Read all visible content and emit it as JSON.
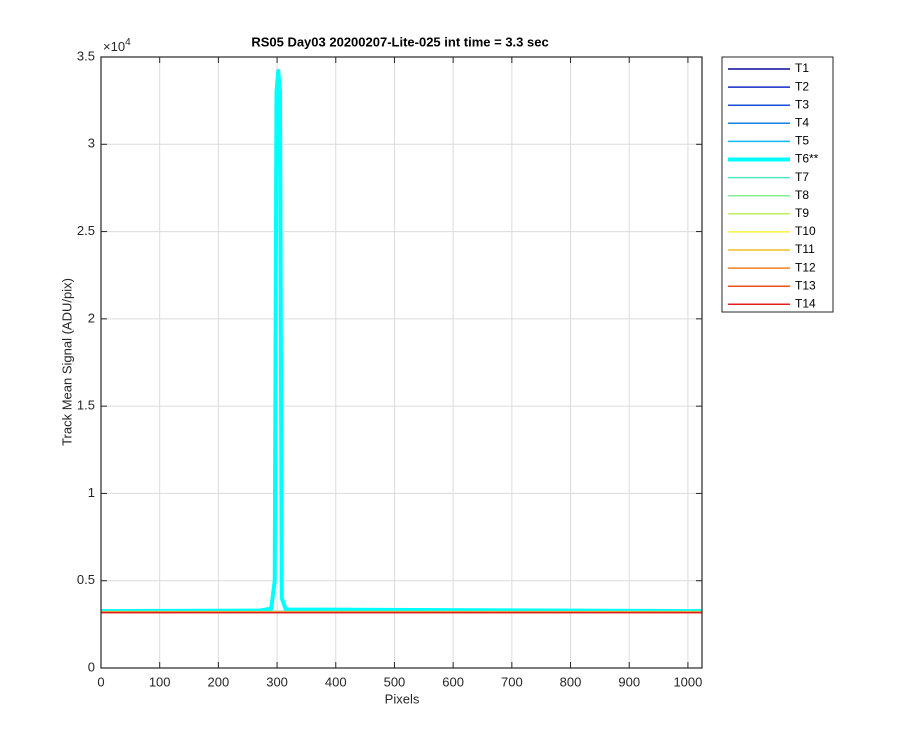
{
  "chart_data": {
    "type": "line",
    "title": "RS05 Day03 20200207-Lite-025 int time = 3.3 sec",
    "x_label": "Pixels",
    "y_label": "Track Mean Signal (ADU/pix)",
    "y_scale_base": "×10",
    "y_scale_exponent": "4",
    "x": [
      0,
      270,
      290,
      296,
      299,
      302,
      305,
      308,
      315,
      1024
    ],
    "xlim": [
      0,
      1024
    ],
    "xticks": [
      0,
      100,
      200,
      300,
      400,
      500,
      600,
      700,
      800,
      900,
      1000
    ],
    "ylim": [
      0,
      35000
    ],
    "yticks": [
      0,
      {
        "value": 5000,
        "label": "0.5"
      },
      {
        "value": 10000,
        "label": "1"
      },
      {
        "value": 15000,
        "label": "1.5"
      },
      {
        "value": 20000,
        "label": "2"
      },
      {
        "value": 25000,
        "label": "2.5"
      },
      {
        "value": 30000,
        "label": "3"
      },
      {
        "value": 35000,
        "label": "3.5"
      }
    ],
    "grid": true,
    "legend_position": "outside-northeast",
    "series": [
      {
        "name": "T1",
        "color": "#0a0a9c",
        "linewidth": 1.5,
        "values": [
          3200,
          3200,
          3200,
          3200,
          3200,
          3200,
          3200,
          3200,
          3200,
          3200
        ]
      },
      {
        "name": "T2",
        "color": "#0f2cc4",
        "linewidth": 1.5,
        "values": [
          3210,
          3210,
          3210,
          3210,
          3210,
          3210,
          3210,
          3210,
          3210,
          3210
        ]
      },
      {
        "name": "T3",
        "color": "#1550d8",
        "linewidth": 1.5,
        "values": [
          3220,
          3220,
          3220,
          3220,
          3220,
          3220,
          3220,
          3220,
          3220,
          3220
        ]
      },
      {
        "name": "T4",
        "color": "#1a80e0",
        "linewidth": 1.5,
        "values": [
          3230,
          3230,
          3230,
          3230,
          3230,
          3230,
          3230,
          3230,
          3230,
          3230
        ]
      },
      {
        "name": "T5",
        "color": "#10b8f0",
        "linewidth": 1.5,
        "values": [
          3240,
          3240,
          3240,
          3240,
          3240,
          3240,
          3240,
          3240,
          3240,
          3240
        ]
      },
      {
        "name": "T6**",
        "color": "#00ffff",
        "linewidth": 4,
        "values": [
          3260,
          3290,
          3400,
          5000,
          33000,
          34200,
          33000,
          4000,
          3350,
          3260
        ]
      },
      {
        "name": "T7",
        "color": "#50e8c0",
        "linewidth": 1.5,
        "values": [
          3240,
          3240,
          3240,
          3240,
          3240,
          3240,
          3240,
          3240,
          3240,
          3240
        ]
      },
      {
        "name": "T8",
        "color": "#80f090",
        "linewidth": 1.5,
        "values": [
          3230,
          3230,
          3230,
          3230,
          3230,
          3230,
          3230,
          3230,
          3230,
          3230
        ]
      },
      {
        "name": "T9",
        "color": "#c0f060",
        "linewidth": 1.5,
        "values": [
          3220,
          3220,
          3220,
          3220,
          3220,
          3220,
          3220,
          3220,
          3220,
          3220
        ]
      },
      {
        "name": "T10",
        "color": "#f8f040",
        "linewidth": 1.5,
        "values": [
          3210,
          3210,
          3210,
          3210,
          3210,
          3210,
          3210,
          3210,
          3210,
          3210
        ]
      },
      {
        "name": "T11",
        "color": "#f0c020",
        "linewidth": 1.5,
        "values": [
          3200,
          3200,
          3200,
          3200,
          3200,
          3200,
          3200,
          3200,
          3200,
          3200
        ]
      },
      {
        "name": "T12",
        "color": "#f08020",
        "linewidth": 1.5,
        "values": [
          3190,
          3190,
          3190,
          3190,
          3190,
          3190,
          3190,
          3190,
          3190,
          3190
        ]
      },
      {
        "name": "T13",
        "color": "#f05020",
        "linewidth": 1.5,
        "values": [
          3180,
          3180,
          3180,
          3180,
          3180,
          3180,
          3180,
          3180,
          3180,
          3180
        ]
      },
      {
        "name": "T14",
        "color": "#e02020",
        "linewidth": 1.5,
        "values": [
          3170,
          3170,
          3170,
          3170,
          3170,
          3170,
          3170,
          3170,
          3170,
          3170
        ]
      }
    ]
  }
}
